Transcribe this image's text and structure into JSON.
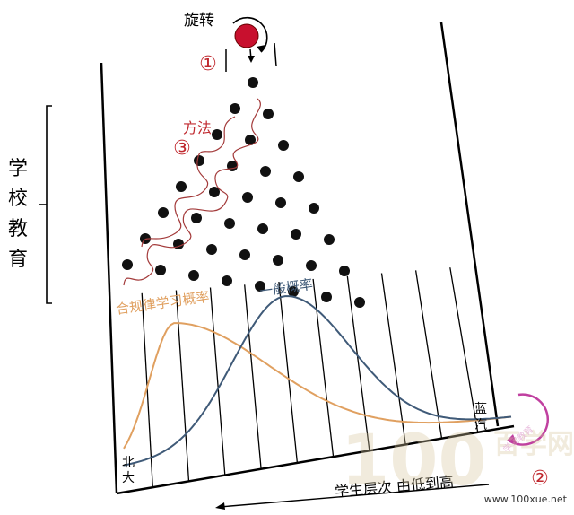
{
  "labels": {
    "rotate": "旋转",
    "method": "方法",
    "circle_1": "①",
    "circle_2": "②",
    "circle_3": "③",
    "school_education": [
      "学",
      "校",
      "教",
      "育"
    ],
    "curve_proper": "合规律学习概率",
    "curve_general": "一般概率",
    "left_end": [
      "北",
      "大"
    ],
    "right_end": [
      "蓝",
      "汽"
    ],
    "axis_caption": "学生层次 由低到高"
  },
  "watermark": {
    "logo_text": "100",
    "site_name": "百学网",
    "badge_text": "学习教育",
    "url": "www.100xue.net"
  },
  "colors": {
    "ball": "#c8102e",
    "peg": "#111111",
    "curve_proper": "#e0a060",
    "curve_general": "#3f5a78",
    "method_path": "#a33a3a",
    "label_red": "#c0282e",
    "badge": "#c040a0"
  }
}
